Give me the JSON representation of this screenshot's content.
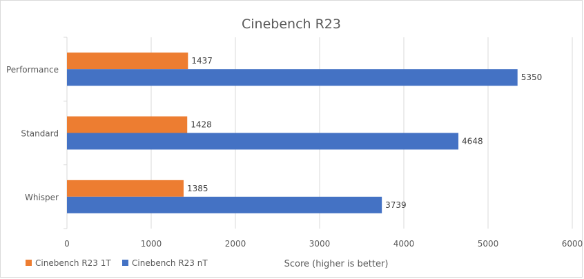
{
  "chart_data": {
    "type": "bar",
    "orientation": "horizontal",
    "title": "Cinebench R23",
    "xlabel": "Score (higher is better)",
    "ylabel": "",
    "categories": [
      "Performance",
      "Standard",
      "Whisper"
    ],
    "series": [
      {
        "name": "Cinebench R23 1T",
        "color": "#ED7D31",
        "values": [
          1437,
          1428,
          1385
        ]
      },
      {
        "name": "Cinebench R23 nT",
        "color": "#4472C4",
        "values": [
          5350,
          4648,
          3739
        ]
      }
    ],
    "xlim": [
      0,
      6000
    ],
    "xticks": [
      0,
      1000,
      2000,
      3000,
      4000,
      5000,
      6000
    ],
    "grid": true,
    "legend_position": "bottom-left",
    "data_labels": true
  }
}
